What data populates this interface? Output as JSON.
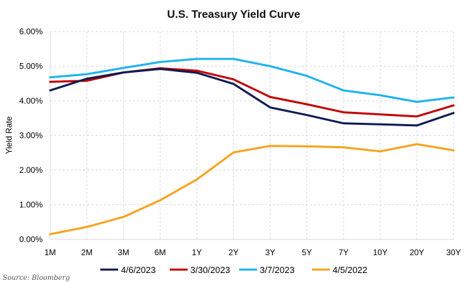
{
  "chart_data": {
    "type": "line",
    "title": "U.S. Treasury Yield Curve",
    "ylabel": "Yield Rate",
    "xlabel": "",
    "categories": [
      "1M",
      "2M",
      "3M",
      "6M",
      "1Y",
      "2Y",
      "3Y",
      "5Y",
      "7Y",
      "10Y",
      "20Y",
      "30Y"
    ],
    "ylim": [
      0,
      6
    ],
    "yticks": [
      "0.00%",
      "1.00%",
      "2.00%",
      "3.00%",
      "4.00%",
      "5.00%",
      "6.00%"
    ],
    "grid": true,
    "legend_position": "bottom",
    "series": [
      {
        "name": "4/6/2023",
        "color": "#0d1b52",
        "values": [
          4.3,
          4.64,
          4.82,
          4.92,
          4.81,
          4.49,
          3.81,
          3.59,
          3.35,
          3.32,
          3.29,
          3.65
        ]
      },
      {
        "name": "3/30/2023",
        "color": "#c00000",
        "values": [
          4.55,
          4.58,
          4.82,
          4.94,
          4.87,
          4.62,
          4.11,
          3.9,
          3.67,
          3.61,
          3.55,
          3.87
        ]
      },
      {
        "name": "3/7/2023",
        "color": "#1fb2ef",
        "values": [
          4.68,
          4.77,
          4.95,
          5.12,
          5.21,
          5.21,
          5.0,
          4.72,
          4.3,
          4.16,
          3.97,
          4.1
        ]
      },
      {
        "name": "4/5/2022",
        "color": "#f9a21c",
        "values": [
          0.15,
          0.36,
          0.65,
          1.13,
          1.73,
          2.51,
          2.7,
          2.69,
          2.66,
          2.54,
          2.75,
          2.57
        ]
      }
    ]
  },
  "source": "Source: Bloomberg"
}
